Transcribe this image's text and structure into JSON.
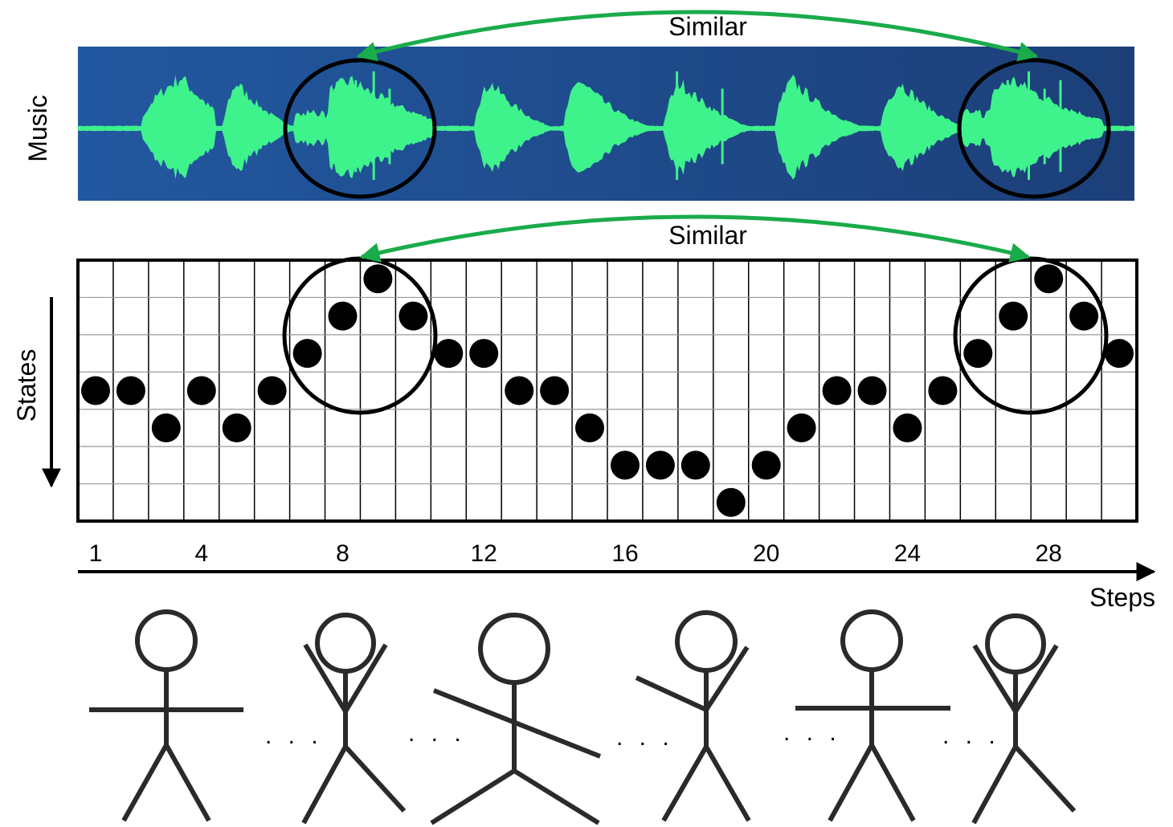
{
  "music": {
    "label": "Music",
    "similar_label": "Similar",
    "background_color": "#1d4b85",
    "wave_color": "#3ef28c",
    "envelopes": [
      {
        "start": 0.06,
        "peak": 0.098,
        "end": 0.13,
        "amp": 0.82,
        "noisy": false
      },
      {
        "start": 0.138,
        "peak": 0.15,
        "end": 0.205,
        "amp": 0.73,
        "noisy": false
      },
      {
        "start": 0.205,
        "peak": 0.258,
        "end": 0.335,
        "amp": 0.77,
        "noisy": true
      },
      {
        "start": 0.375,
        "peak": 0.39,
        "end": 0.445,
        "amp": 0.74,
        "noisy": false
      },
      {
        "start": 0.46,
        "peak": 0.475,
        "end": 0.54,
        "amp": 0.78,
        "noisy": false
      },
      {
        "start": 0.555,
        "peak": 0.57,
        "end": 0.635,
        "amp": 0.74,
        "noisy": false
      },
      {
        "start": 0.66,
        "peak": 0.676,
        "end": 0.74,
        "amp": 0.78,
        "noisy": false
      },
      {
        "start": 0.76,
        "peak": 0.778,
        "end": 0.835,
        "amp": 0.74,
        "noisy": false
      },
      {
        "start": 0.835,
        "peak": 0.885,
        "end": 0.97,
        "amp": 0.77,
        "noisy": true
      }
    ]
  },
  "states": {
    "label": "States",
    "similar_label": "Similar",
    "steps_label": "Steps",
    "n_steps": 30,
    "n_levels": 7,
    "tick_labels": [
      "1",
      "4",
      "8",
      "12",
      "16",
      "20",
      "24",
      "28"
    ],
    "tick_steps": [
      1,
      4,
      8,
      12,
      16,
      20,
      24,
      28
    ],
    "sequence": [
      3,
      3,
      4,
      3,
      4,
      3,
      2,
      1,
      0,
      1,
      2,
      2,
      3,
      3,
      4,
      5,
      5,
      5,
      6,
      5,
      4,
      3,
      3,
      4,
      3,
      2,
      1,
      0,
      1,
      2
    ],
    "highlight_centers": [
      8.5,
      27.5
    ]
  },
  "figures": {
    "color": "#2a2a2a",
    "poses": [
      "arms-horizontal",
      "arms-raised",
      "arms-diagonal",
      "arm-raised-right",
      "arms-horizontal",
      "arms-raised"
    ],
    "separator": ". . ."
  }
}
